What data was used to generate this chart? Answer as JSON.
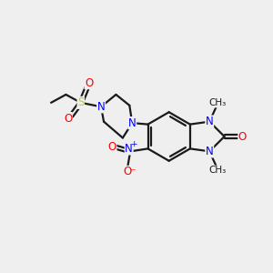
{
  "background_color": "#efefef",
  "bond_color": "#1a1a1a",
  "atom_colors": {
    "N": "#0000ff",
    "O": "#ff0000",
    "S": "#cccc00",
    "C": "#1a1a1a"
  },
  "figsize": [
    3.0,
    3.0
  ],
  "dpi": 100
}
